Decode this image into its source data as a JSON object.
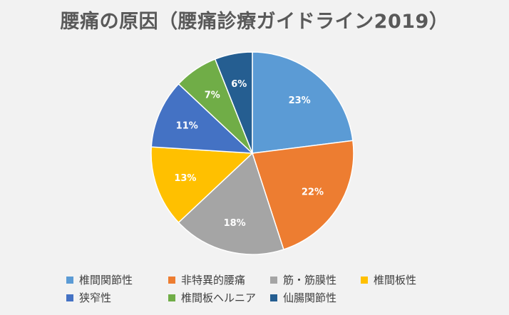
{
  "chart_data": {
    "type": "pie",
    "title": "腰痛の原因（腰痛診療ガイドライン2019）",
    "categories": [
      "椎間関節性",
      "非特異的腰痛",
      "筋・筋膜性",
      "椎間板性",
      "狭窄性",
      "椎間板ヘルニア",
      "仙腸関節性"
    ],
    "values": [
      23,
      22,
      18,
      13,
      11,
      7,
      6
    ],
    "labels": [
      "23%",
      "22%",
      "18%",
      "13%",
      "11%",
      "7%",
      "6%"
    ],
    "colors": [
      "#5b9bd5",
      "#ed7d31",
      "#a5a5a5",
      "#ffc000",
      "#4472c4",
      "#70ad47",
      "#255e91"
    ],
    "start": "12 o'clock, clockwise",
    "legend": "bottom"
  }
}
